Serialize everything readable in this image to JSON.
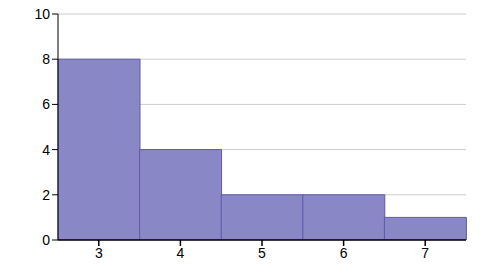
{
  "chart_data": {
    "type": "bar",
    "categories": [
      "3",
      "4",
      "5",
      "6",
      "7"
    ],
    "values": [
      8,
      4,
      2,
      2,
      1
    ],
    "color": "#8a87c6",
    "ylim": [
      0,
      10
    ],
    "yticks": [
      0,
      2,
      4,
      6,
      8,
      10
    ],
    "grid": true
  }
}
